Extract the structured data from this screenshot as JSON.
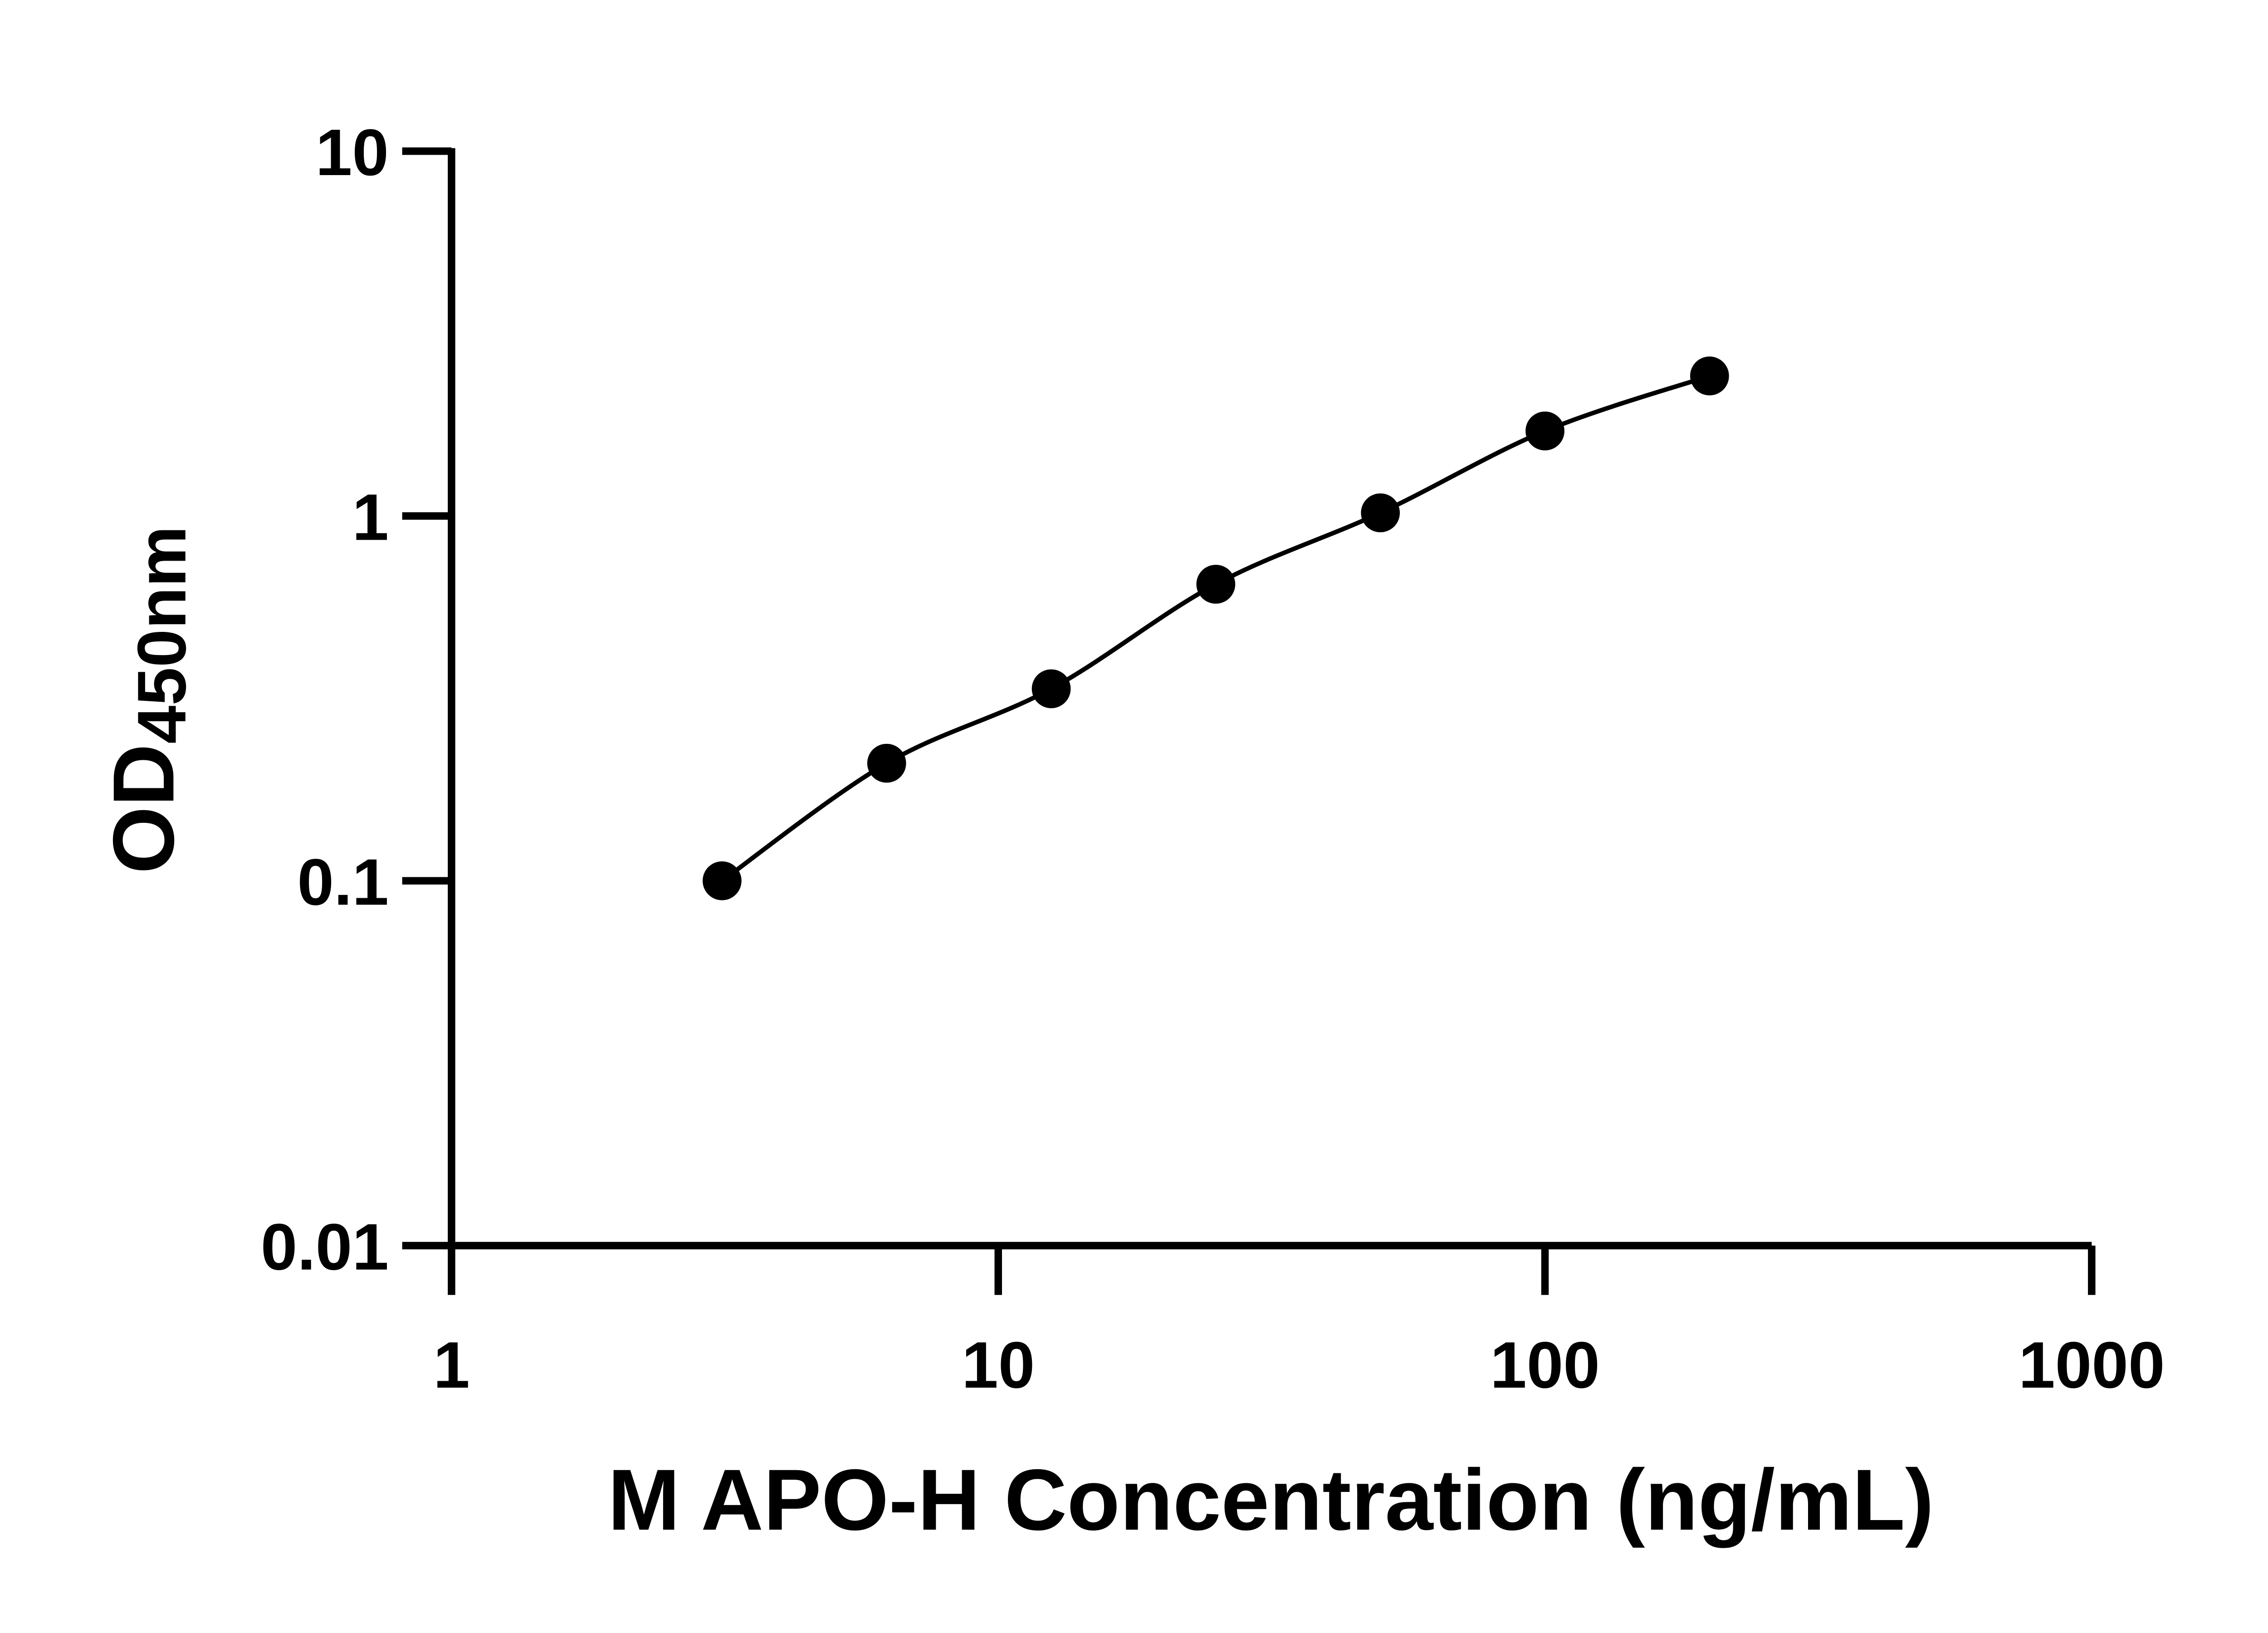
{
  "chart_data": {
    "type": "line",
    "title": "",
    "xlabel": "M APO-H Concentration (ng/mL)",
    "ylabel_main": "OD",
    "ylabel_sub": "450nm",
    "xscale": "log",
    "yscale": "log",
    "xlim": [
      1,
      1000
    ],
    "ylim": [
      0.01,
      10
    ],
    "xticks": [
      1,
      10,
      100,
      1000
    ],
    "xtick_labels": [
      "1",
      "10",
      "100",
      "1000"
    ],
    "yticks": [
      0.01,
      0.1,
      1,
      10
    ],
    "ytick_labels": [
      "0.01",
      "0.1",
      "1",
      "10"
    ],
    "grid": false,
    "legend": "none",
    "marker": "filled-circle",
    "color": "#000000",
    "x": [
      3.125,
      6.25,
      12.5,
      25,
      50,
      100,
      200
    ],
    "y": [
      0.1,
      0.21,
      0.336,
      0.65,
      1.02,
      1.71,
      2.42
    ]
  }
}
